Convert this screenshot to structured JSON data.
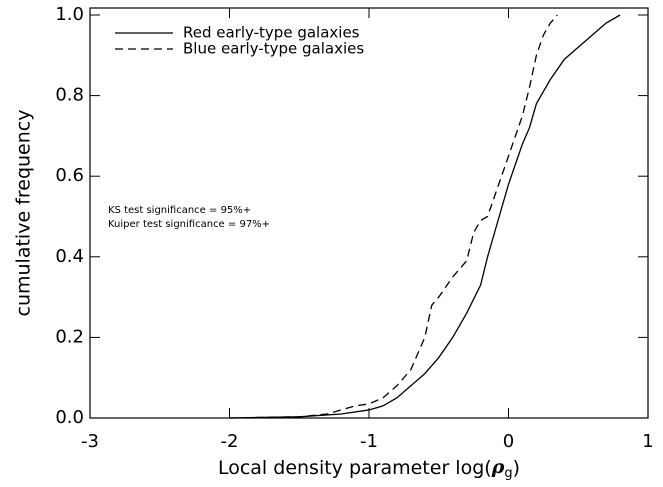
{
  "chart_data": {
    "type": "line",
    "xlabel": [
      "Local density parameter log(",
      "ρ",
      "g",
      ")"
    ],
    "ylabel": "cumulative frequency",
    "xlim": [
      -3,
      1
    ],
    "ylim": [
      0,
      1
    ],
    "xticks": [
      -3,
      -2,
      -1,
      0,
      1
    ],
    "yticks": [
      {
        "value": 0,
        "label": "0.0"
      },
      0.2,
      0.4,
      0.6,
      0.8,
      {
        "value": 1,
        "label": "1.0"
      }
    ],
    "legend": "upper left",
    "annotations": [
      "KS test significance = 95%+",
      "Kuiper test significance = 97%+"
    ],
    "series": [
      {
        "name": "Red early-type galaxies",
        "color": "#000000",
        "dash": "solid",
        "x": [
          -2,
          -1.5,
          -1.2,
          -1.0,
          -0.9,
          -0.8,
          -0.7,
          -0.6,
          -0.5,
          -0.4,
          -0.3,
          -0.2,
          -0.15,
          -0.1,
          -0.05,
          0,
          0.05,
          0.1,
          0.15,
          0.2,
          0.3,
          0.4,
          0.5,
          0.6,
          0.7,
          0.8
        ],
        "values": [
          0,
          0.003,
          0.01,
          0.02,
          0.03,
          0.05,
          0.08,
          0.11,
          0.15,
          0.2,
          0.26,
          0.33,
          0.4,
          0.46,
          0.52,
          0.58,
          0.63,
          0.68,
          0.72,
          0.78,
          0.84,
          0.89,
          0.92,
          0.95,
          0.98,
          1.0
        ]
      },
      {
        "name": "Blue early-type galaxies",
        "color": "#000000",
        "dash": "dashed",
        "x": [
          -2,
          -1.5,
          -1.3,
          -1.1,
          -1.0,
          -0.9,
          -0.8,
          -0.7,
          -0.6,
          -0.55,
          -0.5,
          -0.4,
          -0.3,
          -0.25,
          -0.2,
          -0.15,
          -0.1,
          -0.05,
          0,
          0.05,
          0.1,
          0.15,
          0.2,
          0.25,
          0.3,
          0.35
        ],
        "values": [
          0,
          0.003,
          0.01,
          0.03,
          0.035,
          0.05,
          0.08,
          0.12,
          0.2,
          0.28,
          0.3,
          0.35,
          0.39,
          0.46,
          0.49,
          0.5,
          0.55,
          0.6,
          0.65,
          0.7,
          0.75,
          0.82,
          0.9,
          0.95,
          0.98,
          1.0
        ]
      }
    ]
  }
}
